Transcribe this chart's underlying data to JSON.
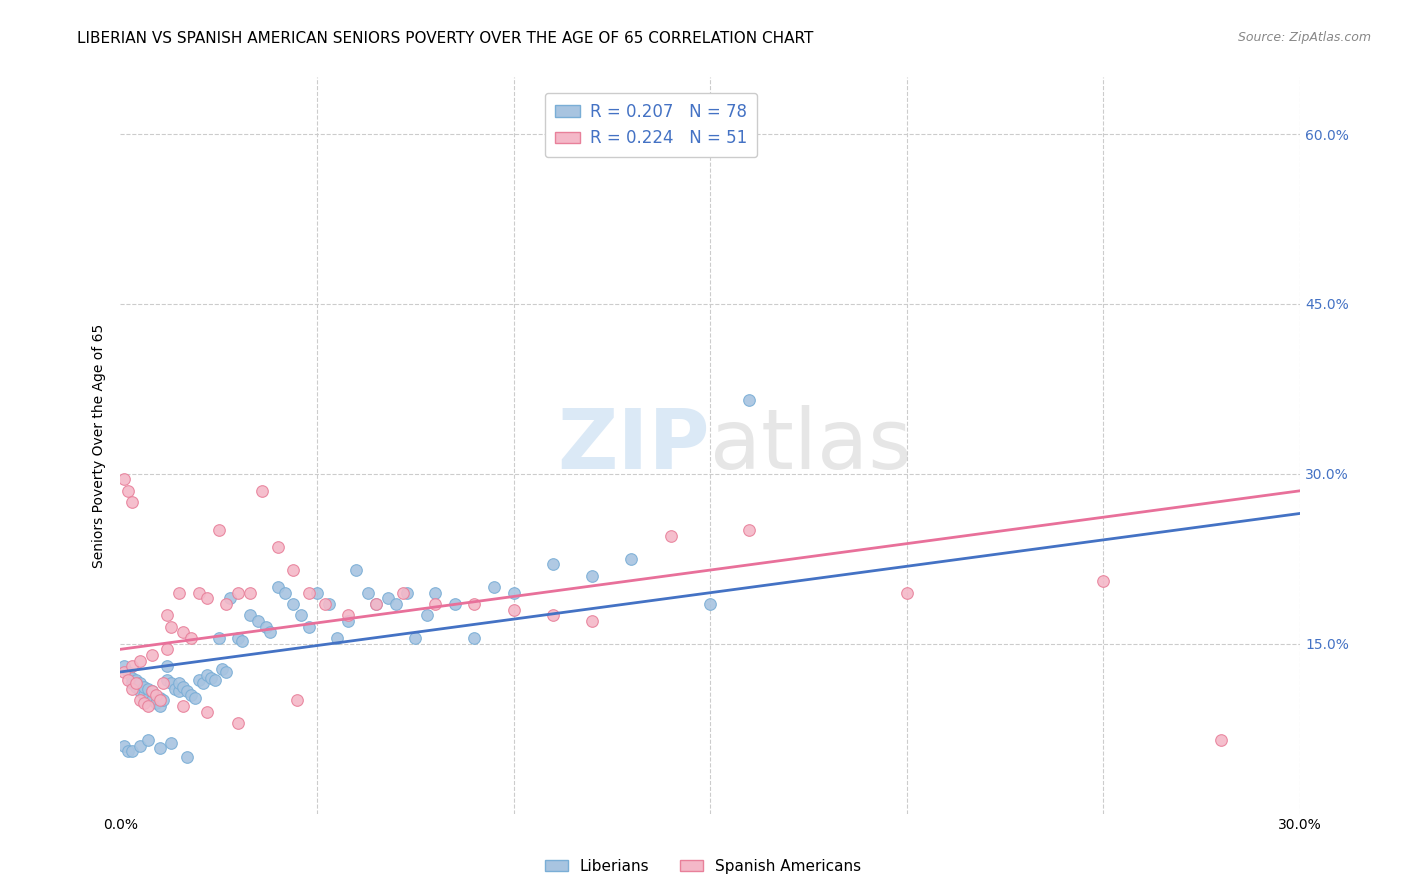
{
  "title": "LIBERIAN VS SPANISH AMERICAN SENIORS POVERTY OVER THE AGE OF 65 CORRELATION CHART",
  "source": "Source: ZipAtlas.com",
  "ylabel": "Seniors Poverty Over the Age of 65",
  "xlim": [
    0.0,
    0.3
  ],
  "ylim": [
    0.0,
    0.65
  ],
  "y_ticks_right": [
    0.0,
    0.15,
    0.3,
    0.45,
    0.6
  ],
  "y_tick_labels_right": [
    "",
    "15.0%",
    "30.0%",
    "45.0%",
    "60.0%"
  ],
  "liberian_color": "#a8c4e0",
  "liberian_edge": "#7aaed6",
  "spanish_color": "#f4b8c8",
  "spanish_edge": "#e8809a",
  "liberian_line_color": "#4472c4",
  "spanish_line_color": "#e8709a",
  "legend_R_N_color": "#4472c4",
  "legend_label1": "R = 0.207   N = 78",
  "legend_label2": "R = 0.224   N = 51",
  "bottom_legend_label1": "Liberians",
  "bottom_legend_label2": "Spanish Americans",
  "watermark_zip": "ZIP",
  "watermark_atlas": "atlas",
  "title_fontsize": 11,
  "tick_fontsize": 10,
  "lib_trend_start": 0.125,
  "lib_trend_end": 0.265,
  "spa_trend_start": 0.145,
  "spa_trend_end": 0.285,
  "liberian_x": [
    0.001,
    0.002,
    0.003,
    0.003,
    0.004,
    0.004,
    0.005,
    0.005,
    0.006,
    0.006,
    0.007,
    0.007,
    0.008,
    0.008,
    0.009,
    0.01,
    0.01,
    0.011,
    0.012,
    0.012,
    0.013,
    0.014,
    0.015,
    0.015,
    0.016,
    0.017,
    0.018,
    0.019,
    0.02,
    0.021,
    0.022,
    0.023,
    0.024,
    0.025,
    0.026,
    0.027,
    0.028,
    0.03,
    0.031,
    0.033,
    0.035,
    0.037,
    0.038,
    0.04,
    0.042,
    0.044,
    0.046,
    0.048,
    0.05,
    0.053,
    0.055,
    0.058,
    0.06,
    0.063,
    0.065,
    0.068,
    0.07,
    0.073,
    0.075,
    0.078,
    0.08,
    0.085,
    0.09,
    0.095,
    0.1,
    0.11,
    0.12,
    0.13,
    0.15,
    0.16,
    0.001,
    0.002,
    0.003,
    0.005,
    0.007,
    0.01,
    0.013,
    0.017
  ],
  "liberian_y": [
    0.13,
    0.125,
    0.12,
    0.115,
    0.112,
    0.118,
    0.108,
    0.115,
    0.105,
    0.112,
    0.102,
    0.11,
    0.1,
    0.108,
    0.098,
    0.095,
    0.102,
    0.1,
    0.13,
    0.118,
    0.115,
    0.11,
    0.108,
    0.115,
    0.112,
    0.108,
    0.105,
    0.102,
    0.118,
    0.115,
    0.122,
    0.12,
    0.118,
    0.155,
    0.128,
    0.125,
    0.19,
    0.155,
    0.152,
    0.175,
    0.17,
    0.165,
    0.16,
    0.2,
    0.195,
    0.185,
    0.175,
    0.165,
    0.195,
    0.185,
    0.155,
    0.17,
    0.215,
    0.195,
    0.185,
    0.19,
    0.185,
    0.195,
    0.155,
    0.175,
    0.195,
    0.185,
    0.155,
    0.2,
    0.195,
    0.22,
    0.21,
    0.225,
    0.185,
    0.365,
    0.06,
    0.055,
    0.055,
    0.06,
    0.065,
    0.058,
    0.062,
    0.05
  ],
  "spanish_x": [
    0.001,
    0.002,
    0.003,
    0.003,
    0.004,
    0.005,
    0.006,
    0.007,
    0.008,
    0.009,
    0.01,
    0.011,
    0.012,
    0.013,
    0.015,
    0.016,
    0.018,
    0.02,
    0.022,
    0.025,
    0.027,
    0.03,
    0.033,
    0.036,
    0.04,
    0.044,
    0.048,
    0.052,
    0.058,
    0.065,
    0.072,
    0.08,
    0.09,
    0.1,
    0.11,
    0.12,
    0.14,
    0.16,
    0.2,
    0.25,
    0.001,
    0.002,
    0.003,
    0.005,
    0.008,
    0.012,
    0.016,
    0.022,
    0.03,
    0.045,
    0.28
  ],
  "spanish_y": [
    0.125,
    0.118,
    0.11,
    0.13,
    0.115,
    0.1,
    0.098,
    0.095,
    0.108,
    0.105,
    0.1,
    0.115,
    0.175,
    0.165,
    0.195,
    0.16,
    0.155,
    0.195,
    0.19,
    0.25,
    0.185,
    0.195,
    0.195,
    0.285,
    0.235,
    0.215,
    0.195,
    0.185,
    0.175,
    0.185,
    0.195,
    0.185,
    0.185,
    0.18,
    0.175,
    0.17,
    0.245,
    0.25,
    0.195,
    0.205,
    0.295,
    0.285,
    0.275,
    0.135,
    0.14,
    0.145,
    0.095,
    0.09,
    0.08,
    0.1,
    0.065
  ]
}
